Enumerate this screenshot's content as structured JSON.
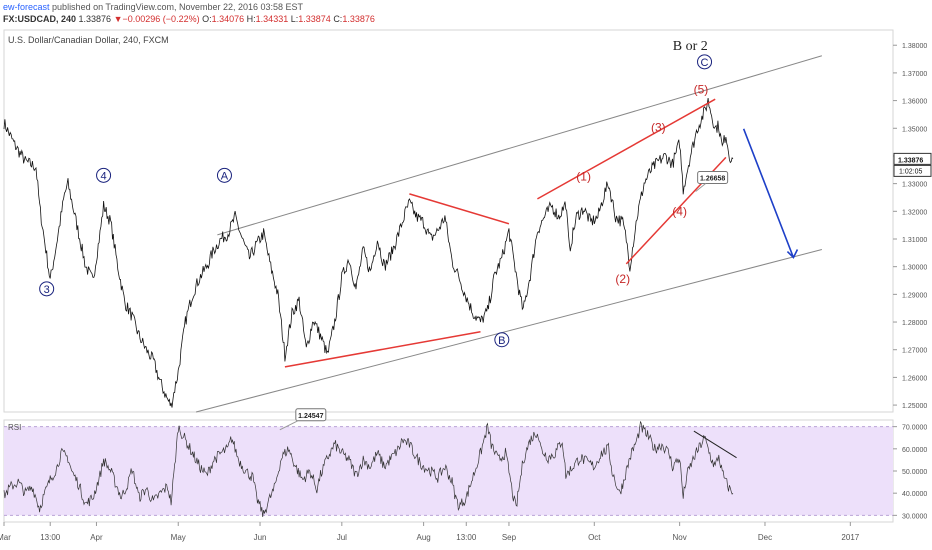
{
  "header": {
    "publisher": "ew-forecast",
    "published_text": "published on TradingView.com, November 22, 2016 03:58 EST",
    "symbol": "FX:USDCAD, 240",
    "last": "1.33876",
    "arrow": "▼",
    "change": "−0.00296 (−0.22%)",
    "o_label": "O:",
    "o": "1.34076",
    "h_label": "H:",
    "h": "1.34331",
    "l_label": "L:",
    "l": "1.33874",
    "c_label": "C:",
    "c": "1.33876"
  },
  "colors": {
    "price_line": "#111111",
    "channel": "#888888",
    "red_lines": "#e53935",
    "wave_blue": "#1a237e",
    "wave_red": "#c62828",
    "arrow": "#1e40c8",
    "rsi_fill": "#ede0fa",
    "rsi_line": "#333333"
  },
  "chart_data": {
    "type": "line",
    "title": "U.S. Dollar/Canadian Dollar, 240, FXCM",
    "y_ticks": [
      "1.38000",
      "1.37000",
      "1.36000",
      "1.35000",
      "1.34000",
      "1.33000",
      "1.32000",
      "1.31000",
      "1.30000",
      "1.29000",
      "1.28000",
      "1.27000",
      "1.26000",
      "1.25000"
    ],
    "ylim": [
      1.2475,
      1.3855
    ],
    "x_ticks": [
      {
        "label": "Mar",
        "x": 0
      },
      {
        "label": "13:00",
        "x": 13
      },
      {
        "label": "Apr",
        "x": 26
      },
      {
        "label": "May",
        "x": 49
      },
      {
        "label": "Jun",
        "x": 72
      },
      {
        "label": "Jul",
        "x": 95
      },
      {
        "label": "Aug",
        "x": 118
      },
      {
        "label": "13:00",
        "x": 130
      },
      {
        "label": "Sep",
        "x": 142
      },
      {
        "label": "Oct",
        "x": 166
      },
      {
        "label": "Nov",
        "x": 190
      },
      {
        "label": "Dec",
        "x": 214
      },
      {
        "label": "2017",
        "x": 238
      }
    ],
    "xlim": [
      0,
      250
    ],
    "price_anchors": [
      [
        0,
        1.352
      ],
      [
        3,
        1.344
      ],
      [
        6,
        1.338
      ],
      [
        9,
        1.336
      ],
      [
        10,
        1.322
      ],
      [
        12,
        1.304
      ],
      [
        13,
        1.295
      ],
      [
        15,
        1.31
      ],
      [
        17,
        1.326
      ],
      [
        18,
        1.33
      ],
      [
        20,
        1.318
      ],
      [
        23,
        1.3
      ],
      [
        25,
        1.295
      ],
      [
        27,
        1.312
      ],
      [
        28,
        1.322
      ],
      [
        30,
        1.316
      ],
      [
        32,
        1.3
      ],
      [
        34,
        1.287
      ],
      [
        36,
        1.282
      ],
      [
        38,
        1.275
      ],
      [
        40,
        1.27
      ],
      [
        42,
        1.266
      ],
      [
        44,
        1.258
      ],
      [
        46,
        1.252
      ],
      [
        47,
        1.2497
      ],
      [
        49,
        1.262
      ],
      [
        51,
        1.28
      ],
      [
        53,
        1.29
      ],
      [
        55,
        1.296
      ],
      [
        57,
        1.3
      ],
      [
        59,
        1.306
      ],
      [
        61,
        1.31
      ],
      [
        63,
        1.312
      ],
      [
        65,
        1.318
      ],
      [
        67,
        1.31
      ],
      [
        69,
        1.303
      ],
      [
        71,
        1.308
      ],
      [
        73,
        1.312
      ],
      [
        75,
        1.3
      ],
      [
        77,
        1.29
      ],
      [
        79,
        1.268
      ],
      [
        81,
        1.283
      ],
      [
        83,
        1.288
      ],
      [
        85,
        1.27
      ],
      [
        87,
        1.281
      ],
      [
        89,
        1.275
      ],
      [
        91,
        1.268
      ],
      [
        93,
        1.28
      ],
      [
        95,
        1.296
      ],
      [
        97,
        1.303
      ],
      [
        99,
        1.292
      ],
      [
        101,
        1.306
      ],
      [
        103,
        1.298
      ],
      [
        105,
        1.31
      ],
      [
        107,
        1.3
      ],
      [
        109,
        1.305
      ],
      [
        111,
        1.312
      ],
      [
        113,
        1.32
      ],
      [
        114,
        1.323
      ],
      [
        116,
        1.318
      ],
      [
        118,
        1.316
      ],
      [
        120,
        1.31
      ],
      [
        122,
        1.313
      ],
      [
        124,
        1.318
      ],
      [
        126,
        1.302
      ],
      [
        128,
        1.296
      ],
      [
        130,
        1.289
      ],
      [
        132,
        1.283
      ],
      [
        134,
        1.28
      ],
      [
        136,
        1.284
      ],
      [
        138,
        1.297
      ],
      [
        140,
        1.303
      ],
      [
        142,
        1.313
      ],
      [
        143,
        1.305
      ],
      [
        145,
        1.29
      ],
      [
        146,
        1.284
      ],
      [
        148,
        1.297
      ],
      [
        150,
        1.313
      ],
      [
        152,
        1.318
      ],
      [
        154,
        1.322
      ],
      [
        156,
        1.318
      ],
      [
        158,
        1.323
      ],
      [
        159,
        1.306
      ],
      [
        161,
        1.318
      ],
      [
        163,
        1.321
      ],
      [
        165,
        1.316
      ],
      [
        167,
        1.318
      ],
      [
        169,
        1.327
      ],
      [
        170,
        1.33
      ],
      [
        172,
        1.318
      ],
      [
        174,
        1.316
      ],
      [
        175,
        1.31
      ],
      [
        176,
        1.3
      ],
      [
        178,
        1.318
      ],
      [
        180,
        1.33
      ],
      [
        182,
        1.335
      ],
      [
        184,
        1.338
      ],
      [
        186,
        1.34
      ],
      [
        188,
        1.337
      ],
      [
        190,
        1.345
      ],
      [
        191,
        1.328
      ],
      [
        193,
        1.34
      ],
      [
        195,
        1.35
      ],
      [
        197,
        1.356
      ],
      [
        198,
        1.36
      ],
      [
        199,
        1.355
      ],
      [
        200,
        1.35
      ],
      [
        201,
        1.351
      ],
      [
        202,
        1.343
      ],
      [
        203,
        1.348
      ],
      [
        204,
        1.34
      ],
      [
        205,
        1.339
      ]
    ],
    "rsi": {
      "label": "RSI",
      "y_ticks": [
        "70.0000",
        "60.0000",
        "50.0000",
        "40.0000",
        "30.0000"
      ],
      "ylim": [
        27,
        73
      ],
      "band": [
        30,
        70
      ],
      "anchors": [
        [
          0,
          39
        ],
        [
          2,
          43
        ],
        [
          4,
          45
        ],
        [
          6,
          40
        ],
        [
          8,
          43
        ],
        [
          10,
          33
        ],
        [
          11,
          38
        ],
        [
          13,
          46
        ],
        [
          15,
          52
        ],
        [
          16,
          58
        ],
        [
          18,
          56
        ],
        [
          19,
          50
        ],
        [
          21,
          44
        ],
        [
          23,
          35
        ],
        [
          25,
          38
        ],
        [
          27,
          48
        ],
        [
          28,
          55
        ],
        [
          30,
          50
        ],
        [
          32,
          42
        ],
        [
          33,
          38
        ],
        [
          35,
          45
        ],
        [
          36,
          51
        ],
        [
          38,
          38
        ],
        [
          40,
          42
        ],
        [
          42,
          36
        ],
        [
          44,
          40
        ],
        [
          46,
          43
        ],
        [
          47,
          36
        ],
        [
          48,
          52
        ],
        [
          49,
          70
        ],
        [
          51,
          64
        ],
        [
          53,
          58
        ],
        [
          55,
          52
        ],
        [
          57,
          48
        ],
        [
          59,
          55
        ],
        [
          61,
          58
        ],
        [
          63,
          60
        ],
        [
          64,
          65
        ],
        [
          66,
          55
        ],
        [
          68,
          50
        ],
        [
          70,
          47
        ],
        [
          71,
          38
        ],
        [
          72,
          34
        ],
        [
          73,
          30
        ],
        [
          74,
          35
        ],
        [
          76,
          42
        ],
        [
          78,
          56
        ],
        [
          80,
          60
        ],
        [
          82,
          52
        ],
        [
          84,
          46
        ],
        [
          86,
          50
        ],
        [
          88,
          42
        ],
        [
          89,
          48
        ],
        [
          91,
          56
        ],
        [
          93,
          62
        ],
        [
          95,
          58
        ],
        [
          97,
          55
        ],
        [
          99,
          48
        ],
        [
          101,
          55
        ],
        [
          103,
          52
        ],
        [
          105,
          58
        ],
        [
          107,
          52
        ],
        [
          109,
          56
        ],
        [
          111,
          60
        ],
        [
          112,
          64
        ],
        [
          114,
          62
        ],
        [
          116,
          56
        ],
        [
          118,
          52
        ],
        [
          120,
          50
        ],
        [
          122,
          47
        ],
        [
          124,
          52
        ],
        [
          126,
          45
        ],
        [
          127,
          38
        ],
        [
          128,
          34
        ],
        [
          130,
          38
        ],
        [
          132,
          48
        ],
        [
          134,
          58
        ],
        [
          136,
          70
        ],
        [
          137,
          62
        ],
        [
          139,
          55
        ],
        [
          141,
          58
        ],
        [
          142,
          50
        ],
        [
          143,
          40
        ],
        [
          144,
          33
        ],
        [
          146,
          55
        ],
        [
          148,
          64
        ],
        [
          150,
          68
        ],
        [
          151,
          60
        ],
        [
          153,
          56
        ],
        [
          155,
          58
        ],
        [
          157,
          64
        ],
        [
          158,
          48
        ],
        [
          160,
          52
        ],
        [
          162,
          56
        ],
        [
          164,
          54
        ],
        [
          166,
          52
        ],
        [
          168,
          58
        ],
        [
          170,
          60
        ],
        [
          171,
          50
        ],
        [
          172,
          45
        ],
        [
          173,
          40
        ],
        [
          174,
          44
        ],
        [
          176,
          56
        ],
        [
          178,
          64
        ],
        [
          179,
          70
        ],
        [
          181,
          66
        ],
        [
          183,
          60
        ],
        [
          185,
          62
        ],
        [
          187,
          58
        ],
        [
          188,
          52
        ],
        [
          190,
          56
        ],
        [
          191,
          38
        ],
        [
          192,
          48
        ],
        [
          194,
          56
        ],
        [
          196,
          62
        ],
        [
          197,
          65
        ],
        [
          198,
          60
        ],
        [
          199,
          55
        ],
        [
          200,
          52
        ],
        [
          201,
          57
        ],
        [
          202,
          49
        ],
        [
          203,
          45
        ],
        [
          204,
          42
        ],
        [
          205,
          40
        ]
      ]
    },
    "annotations": {
      "main_label": "B or 2",
      "blue_waves": [
        {
          "label": "3",
          "x": 12,
          "y": 1.292
        },
        {
          "label": "4",
          "x": 28,
          "y": 1.333
        },
        {
          "label": "A",
          "x": 62,
          "y": 1.333
        },
        {
          "label": "B",
          "x": 140,
          "y": 1.2736
        },
        {
          "label": "C",
          "x": 197,
          "y": 1.374
        }
      ],
      "red_waves": [
        {
          "label": "(1)",
          "x": 163,
          "y": 1.3325
        },
        {
          "label": "(2)",
          "x": 174,
          "y": 1.2955
        },
        {
          "label": "(3)",
          "x": 184,
          "y": 1.3503
        },
        {
          "label": "(4)",
          "x": 190,
          "y": 1.32
        },
        {
          "label": "(5)",
          "x": 196,
          "y": 1.364
        }
      ],
      "callouts": [
        {
          "text": "1.26658",
          "x": 199,
          "y": 1.3322
        },
        {
          "text": "1.24547",
          "x": 86,
          "y": 1.2465
        }
      ],
      "price_tag": "1.33876",
      "time_tag": "1:02:05"
    }
  }
}
